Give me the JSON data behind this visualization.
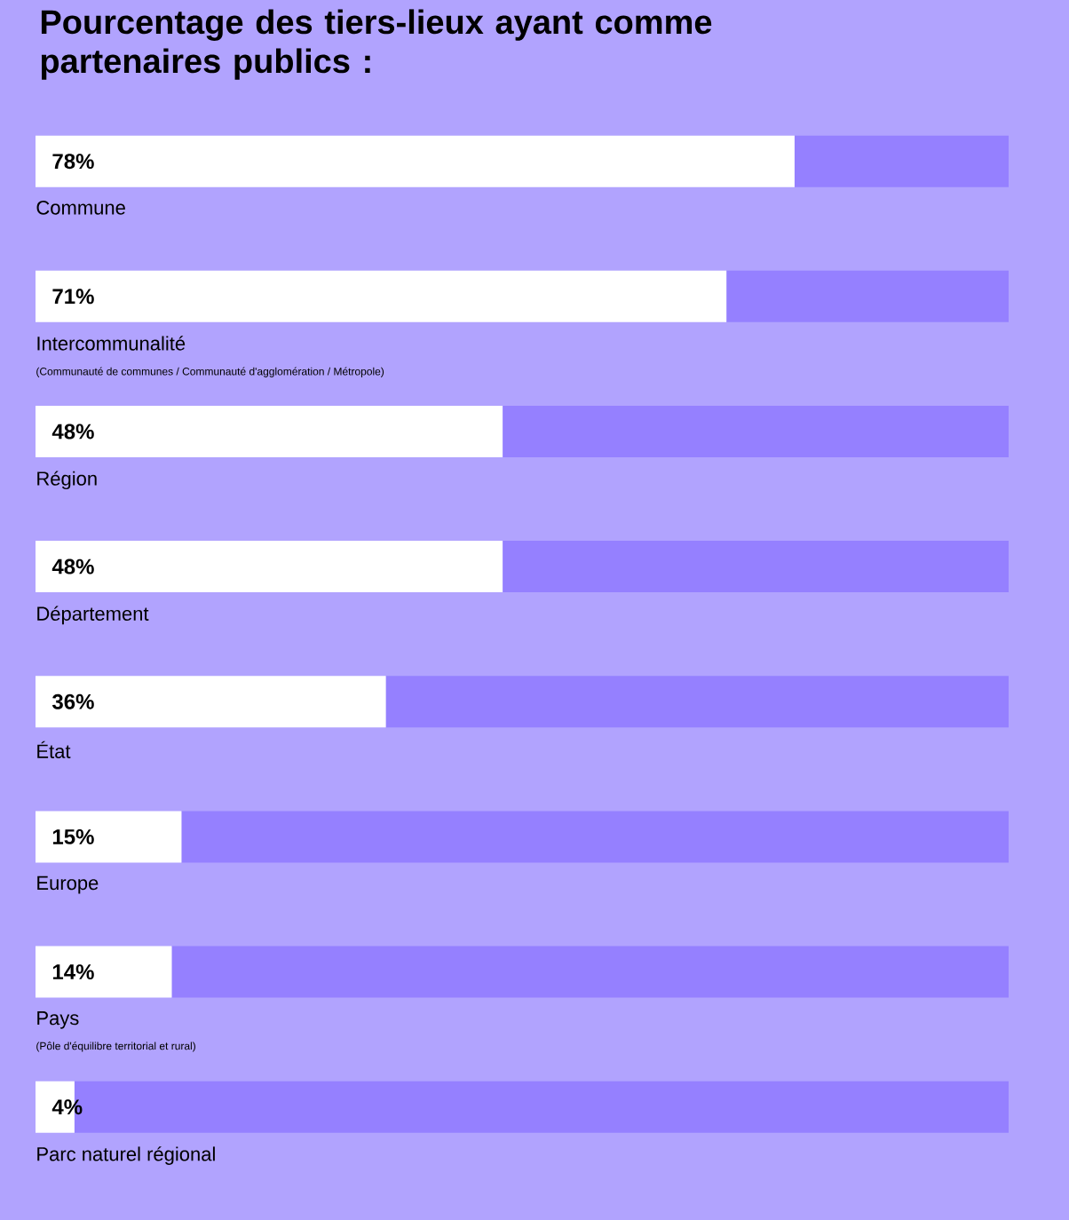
{
  "chart_data": {
    "type": "bar",
    "orientation": "horizontal",
    "stacked": true,
    "title": "Pourcentage des tiers-lieux ayant comme partenaires publics :",
    "categories": [
      "Commune",
      "Intercommunalité",
      "Région",
      "Département",
      "État",
      "Europe",
      "Pays",
      "Parc naturel régional"
    ],
    "xlim": [
      0,
      100
    ],
    "series": [
      {
        "color": "#ffffff",
        "values": [
          78,
          71,
          48,
          48,
          36,
          15,
          14,
          4
        ],
        "value_labels": [
          "78%",
          "71%",
          "48%",
          "48%",
          "36%",
          "15%",
          "14%",
          "4%"
        ]
      },
      {
        "color": "#9580ff",
        "values": [
          22,
          29,
          52,
          52,
          64,
          85,
          86,
          96
        ]
      }
    ],
    "annotations": [
      "(Communauté de communes / Communauté d'agglomération / Métropole)",
      "(Pôle d'équilibre territorial et rural)"
    ]
  }
}
